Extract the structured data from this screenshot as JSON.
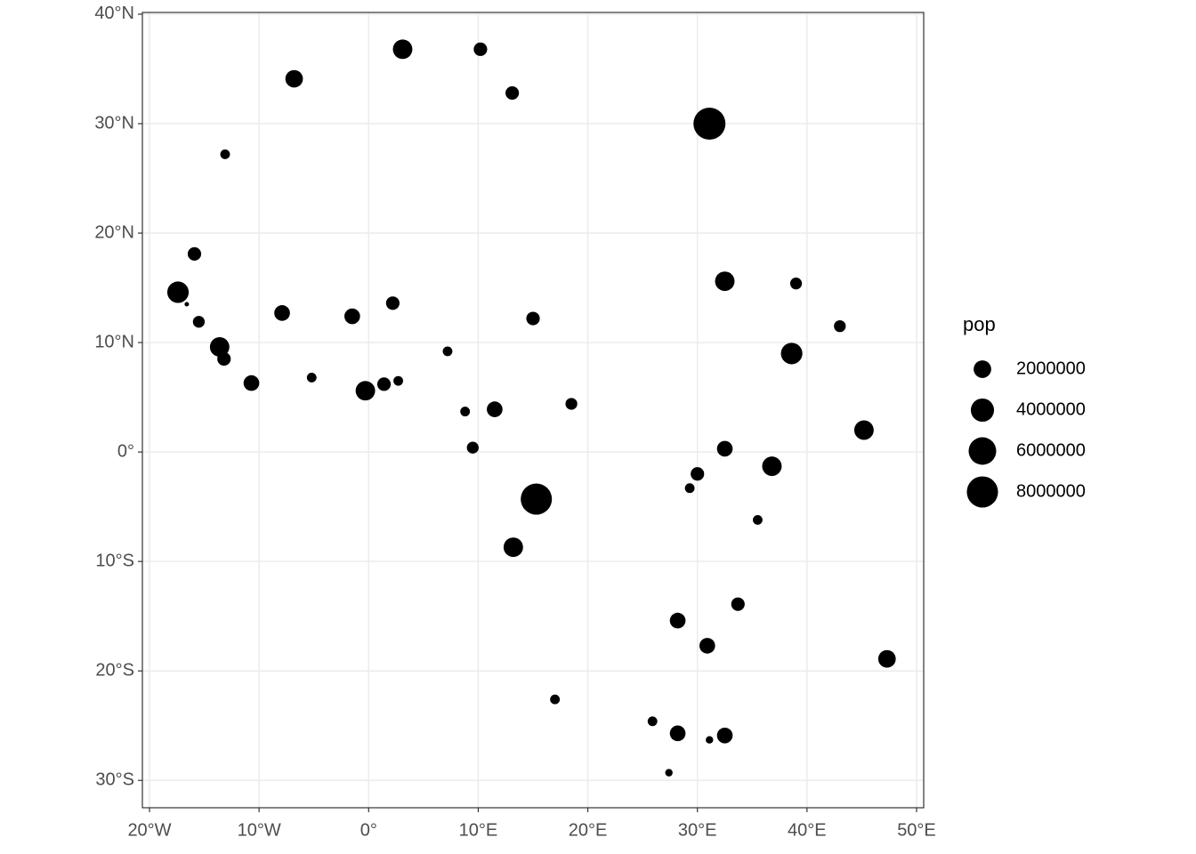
{
  "chart_data": {
    "type": "scatter",
    "color": "#000000",
    "grid": true,
    "xlim": [
      -20.65,
      50.65
    ],
    "ylim": [
      -32.5,
      40.16
    ],
    "xticks": [
      {
        "value": -20,
        "label": "20°W"
      },
      {
        "value": -10,
        "label": "10°W"
      },
      {
        "value": 0,
        "label": "0°"
      },
      {
        "value": 10,
        "label": "10°E"
      },
      {
        "value": 20,
        "label": "20°E"
      },
      {
        "value": 30,
        "label": "30°E"
      },
      {
        "value": 40,
        "label": "40°E"
      },
      {
        "value": 50,
        "label": "50°E"
      }
    ],
    "yticks": [
      {
        "value": -30,
        "label": "30°S"
      },
      {
        "value": -20,
        "label": "20°S"
      },
      {
        "value": -10,
        "label": "10°S"
      },
      {
        "value": 0,
        "label": "0°"
      },
      {
        "value": 10,
        "label": "10°N"
      },
      {
        "value": 20,
        "label": "20°N"
      },
      {
        "value": 30,
        "label": "30°N"
      },
      {
        "value": 40,
        "label": "40°N"
      }
    ],
    "size_label": "pop",
    "size_legend": [
      2000000,
      4000000,
      6000000,
      8000000
    ],
    "x": [
      3.1,
      10.2,
      13.1,
      -6.8,
      31.1,
      -13.1,
      -15.9,
      -17.4,
      -16.6,
      -15.5,
      -13.6,
      -13.2,
      -10.7,
      -7.9,
      -5.2,
      -1.5,
      -0.3,
      1.4,
      2.7,
      2.2,
      7.2,
      8.8,
      11.5,
      9.5,
      15.0,
      18.5,
      15.3,
      13.2,
      32.5,
      39.0,
      43.0,
      38.6,
      45.2,
      32.5,
      36.8,
      30.0,
      29.3,
      35.5,
      33.7,
      28.2,
      30.9,
      47.3,
      17.0,
      25.9,
      28.2,
      32.5,
      31.1,
      27.4
    ],
    "y": [
      36.8,
      36.8,
      32.8,
      34.1,
      30.0,
      27.2,
      18.1,
      14.6,
      13.5,
      11.9,
      9.6,
      8.5,
      6.3,
      12.7,
      6.8,
      12.4,
      5.6,
      6.2,
      6.5,
      13.6,
      9.2,
      3.7,
      3.9,
      0.4,
      12.2,
      4.4,
      -4.3,
      -8.7,
      15.6,
      15.4,
      11.5,
      9.0,
      2.0,
      0.3,
      -1.3,
      -2.0,
      -3.3,
      -6.2,
      -13.9,
      -15.4,
      -17.7,
      -18.9,
      -22.6,
      -24.6,
      -25.7,
      -25.9,
      -26.3,
      -29.3
    ],
    "size": [
      2600000,
      1000000,
      1000000,
      2000000,
      8500000,
      400000,
      1000000,
      3300000,
      100000,
      700000,
      2600000,
      1000000,
      1500000,
      1500000,
      400000,
      1500000,
      2600000,
      1000000,
      400000,
      1000000,
      400000,
      400000,
      1500000,
      700000,
      1000000,
      700000,
      8000000,
      2600000,
      2600000,
      700000,
      700000,
      3300000,
      2600000,
      1500000,
      2600000,
      1000000,
      400000,
      400000,
      1000000,
      1500000,
      1500000,
      2000000,
      400000,
      400000,
      1500000,
      1500000,
      200000,
      200000
    ]
  }
}
